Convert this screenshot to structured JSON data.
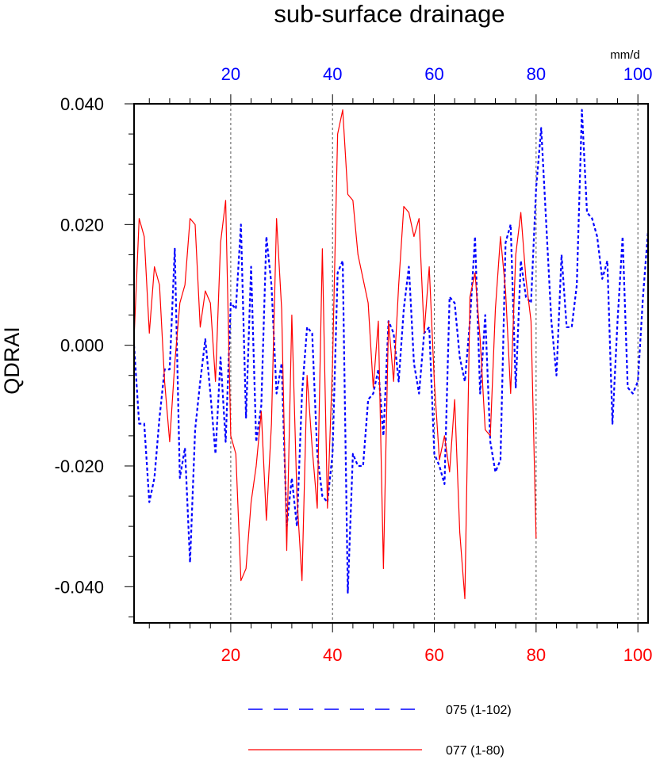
{
  "chart_data": {
    "type": "line",
    "title": "sub-surface drainage",
    "ylabel": "QDRAI",
    "units_label": "mm/d",
    "ylim": [
      -0.046,
      0.04
    ],
    "yticks": [
      -0.04,
      -0.02,
      0.0,
      0.02,
      0.04
    ],
    "ytick_labels": [
      "-0.040",
      "-0.020",
      "0.000",
      "0.020",
      "0.040"
    ],
    "grid_x": [
      20,
      40,
      60,
      80,
      100
    ],
    "axes": {
      "bottom": {
        "color": "#ff0000",
        "xlim": [
          1,
          102
        ],
        "ticks": [
          20,
          40,
          60,
          80,
          100
        ],
        "tick_labels": [
          "20",
          "40",
          "60",
          "80",
          "100"
        ]
      },
      "top": {
        "color": "#0000ff",
        "xlim": [
          1,
          102
        ],
        "ticks": [
          20,
          40,
          60,
          80,
          100
        ],
        "tick_labels": [
          "20",
          "40",
          "60",
          "80",
          "100"
        ]
      }
    },
    "series": [
      {
        "name": "075 (1-102)",
        "color": "#0000ff",
        "dash": "dashed",
        "x_start": 1,
        "values": [
          0.0,
          -0.013,
          -0.013,
          -0.026,
          -0.022,
          -0.012,
          -0.004,
          -0.004,
          0.016,
          -0.022,
          -0.017,
          -0.036,
          -0.014,
          -0.006,
          0.001,
          -0.008,
          -0.018,
          -0.002,
          -0.016,
          0.007,
          0.006,
          0.02,
          -0.012,
          0.013,
          -0.016,
          -0.01,
          0.018,
          0.01,
          -0.008,
          -0.003,
          -0.03,
          -0.022,
          -0.03,
          -0.008,
          0.003,
          0.002,
          -0.018,
          -0.025,
          -0.026,
          -0.018,
          0.012,
          0.014,
          -0.041,
          -0.018,
          -0.02,
          -0.02,
          -0.009,
          -0.008,
          -0.004,
          -0.015,
          0.004,
          0.002,
          -0.006,
          0.006,
          0.013,
          -0.003,
          -0.008,
          0.002,
          0.003,
          -0.018,
          -0.02,
          -0.023,
          0.008,
          0.007,
          -0.002,
          -0.006,
          0.004,
          0.018,
          -0.008,
          0.005,
          -0.016,
          -0.021,
          -0.019,
          0.017,
          0.02,
          -0.007,
          0.014,
          0.008,
          0.007,
          0.026,
          0.036,
          0.02,
          0.004,
          -0.005,
          0.015,
          0.003,
          0.003,
          0.01,
          0.039,
          0.022,
          0.021,
          0.018,
          0.011,
          0.014,
          -0.013,
          0.004,
          0.018,
          -0.007,
          -0.008,
          -0.006,
          0.008,
          0.019
        ]
      },
      {
        "name": "077 (1-80)",
        "color": "#ff0000",
        "dash": "solid",
        "x_start": 1,
        "values": [
          0.001,
          0.021,
          0.018,
          0.002,
          0.013,
          0.01,
          -0.006,
          -0.016,
          -0.003,
          0.007,
          0.01,
          0.021,
          0.02,
          0.003,
          0.009,
          0.007,
          -0.006,
          0.017,
          0.024,
          -0.015,
          -0.018,
          -0.039,
          -0.037,
          -0.026,
          -0.02,
          -0.011,
          -0.029,
          -0.013,
          0.021,
          0.006,
          -0.034,
          0.005,
          -0.025,
          -0.039,
          -0.005,
          -0.017,
          -0.027,
          0.016,
          -0.027,
          -0.003,
          0.035,
          0.039,
          0.025,
          0.024,
          0.015,
          0.011,
          0.007,
          -0.007,
          0.004,
          -0.037,
          0.004,
          -0.006,
          0.01,
          0.023,
          0.022,
          0.018,
          0.021,
          0.002,
          0.013,
          -0.006,
          -0.019,
          -0.015,
          -0.021,
          -0.009,
          -0.031,
          -0.042,
          0.008,
          0.012,
          0.001,
          -0.014,
          -0.015,
          0.006,
          0.018,
          0.009,
          -0.008,
          0.015,
          0.022,
          0.011,
          0.004,
          -0.032
        ]
      }
    ],
    "legend": {
      "placement": "bottom-center",
      "entries": [
        "075 (1-102)",
        "077 (1-80)"
      ]
    }
  }
}
